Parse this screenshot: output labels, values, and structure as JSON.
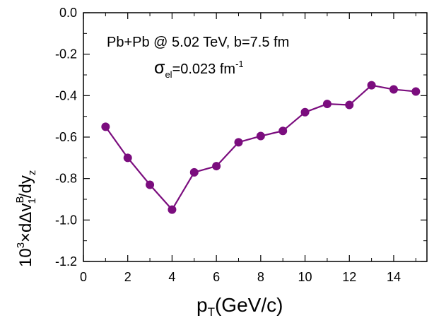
{
  "chart_data": {
    "type": "line",
    "title": "",
    "annotations": {
      "line1": "Pb+Pb @ 5.02 TeV, b=7.5 fm",
      "sigma_symbol": "σ",
      "sigma_subscript": "el",
      "sigma_value": "=0.023 fm",
      "sigma_unit_exponent": "-1"
    },
    "xlabel": {
      "main": "p",
      "sub": "T",
      "rest": "(GeV/c)"
    },
    "ylabel": {
      "prefix": "10",
      "prefix_sup": "3",
      "body": "×dΔv",
      "v_sup": "B",
      "v_sub": "1",
      "tail": "/dy",
      "tail_sub": "z"
    },
    "xlim": [
      0,
      15.5
    ],
    "ylim": [
      -1.2,
      0.0
    ],
    "xticks": [
      0,
      2,
      4,
      6,
      8,
      10,
      12,
      14
    ],
    "xtick_labels": [
      "0",
      "2",
      "4",
      "6",
      "8",
      "10",
      "12",
      "14"
    ],
    "yticks": [
      0.0,
      -0.2,
      -0.4,
      -0.6,
      -0.8,
      -1.0,
      -1.2
    ],
    "ytick_labels": [
      "0.0",
      "-0.2",
      "-0.4",
      "-0.6",
      "-0.8",
      "-1.0",
      "-1.2"
    ],
    "x_minor_step": 1,
    "y_minor_step": 0.1,
    "grid": false,
    "series": [
      {
        "color": "#7b0d7e",
        "x": [
          1,
          2,
          3,
          4,
          5,
          6,
          7,
          8,
          9,
          10,
          11,
          12,
          13,
          14,
          15
        ],
        "y": [
          -0.55,
          -0.7,
          -0.83,
          -0.95,
          -0.77,
          -0.74,
          -0.625,
          -0.595,
          -0.57,
          -0.48,
          -0.44,
          -0.445,
          -0.35,
          -0.37,
          -0.38
        ]
      }
    ]
  }
}
